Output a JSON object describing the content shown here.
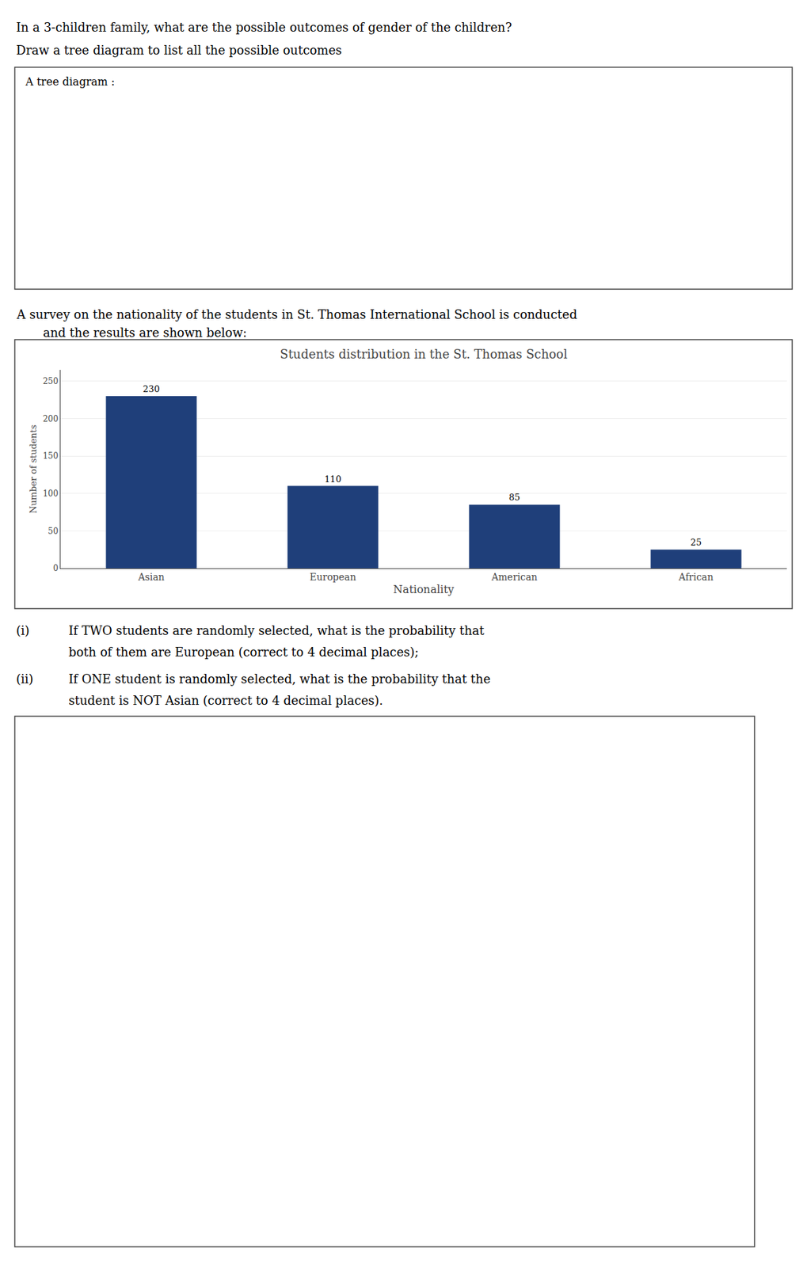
{
  "chart_data": {
    "type": "bar",
    "title": "Students distribution in the St. Thomas School",
    "xlabel": "Nationality",
    "ylabel": "Number of students",
    "categories": [
      "Asian",
      "European",
      "American",
      "African"
    ],
    "values": [
      230,
      110,
      85,
      25
    ],
    "color": "#1f3f7a",
    "ylim": [
      0,
      265
    ],
    "yticks": [
      0,
      50,
      100,
      150,
      200,
      250
    ],
    "grid": true,
    "data_labels": true,
    "annotations": [
      "In a 3-children family, what are the possible outcomes of gender of the children?",
      "Draw a tree diagram to list all the possible outcomes",
      "A tree diagram :",
      "A survey on the nationality of the students in St. Thomas International School is conducted",
      "and the results are shown below:",
      "(i)",
      "If TWO students are randomly selected, what is the probability that",
      "both of them are European (correct to 4 decimal places);",
      "(ii)",
      "If ONE student is randomly selected, what is the probability that the",
      "student is NOT Asian (correct to 4 decimal places)."
    ]
  }
}
